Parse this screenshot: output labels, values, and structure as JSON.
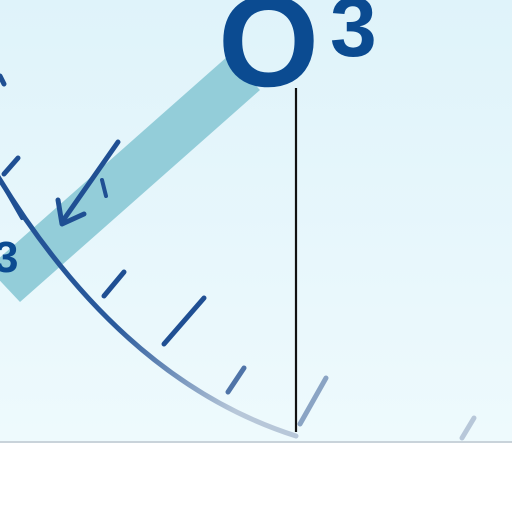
{
  "diagram": {
    "label_letter": "O",
    "label_subscript": "3",
    "partial_label": "3"
  },
  "colors": {
    "background_top": "#dff3fa",
    "background_bottom": "#eefafd",
    "floor": "#ffffff",
    "floor_line": "#c9d3da",
    "beam": "#93cdd9",
    "scale": "#1f4f93",
    "scale_fade": "#b7c7d9",
    "label": "#0b4b91",
    "normal_line": "#111111"
  }
}
